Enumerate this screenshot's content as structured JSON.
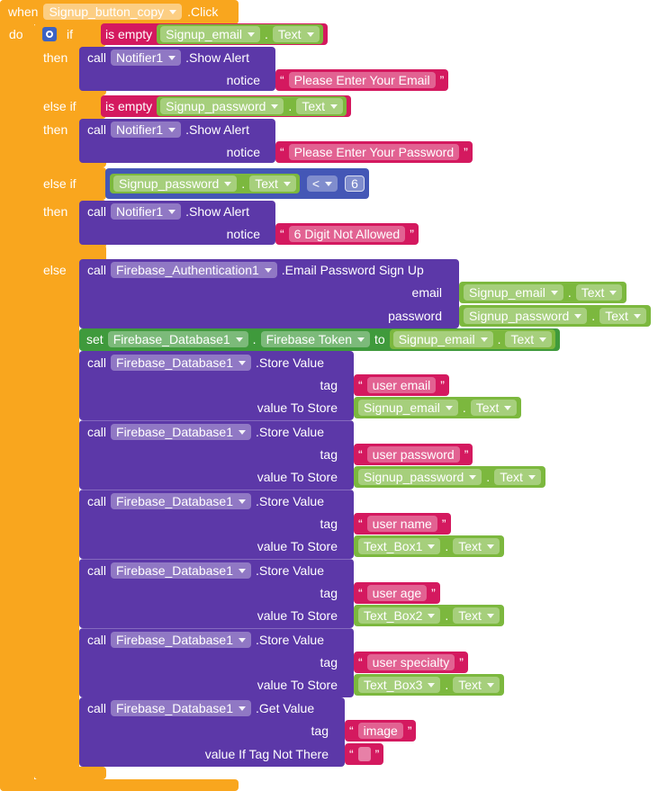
{
  "event": {
    "keyword": "when",
    "component": "Signup_button_copy",
    "event": ".Click",
    "do": "do"
  },
  "if_block": {
    "labels": [
      "if",
      "then",
      "else if",
      "then",
      "else if",
      "then",
      "else"
    ],
    "conditions": [
      {
        "operator": "is empty",
        "component": "Signup_email",
        "property": "Text"
      },
      {
        "operator": "is empty",
        "component": "Signup_password",
        "property": "Text"
      },
      {
        "component": "Signup_password",
        "property": "Text",
        "operator": "<",
        "number": 6
      }
    ],
    "alerts": [
      {
        "call": "call",
        "component": "Notifier1",
        "method": ".Show Alert",
        "param": "notice",
        "text": "Please Enter Your Email"
      },
      {
        "call": "call",
        "component": "Notifier1",
        "method": ".Show Alert",
        "param": "notice",
        "text": "Please Enter Your Password"
      },
      {
        "call": "call",
        "component": "Notifier1",
        "method": ".Show Alert",
        "param": "notice",
        "text": "6 Digit Not Allowed"
      }
    ]
  },
  "else_branch": {
    "sign_up": {
      "call": "call",
      "component": "Firebase_Authentication1",
      "method": ".Email Password Sign Up",
      "params": [
        {
          "name": "email",
          "component": "Signup_email",
          "property": "Text"
        },
        {
          "name": "password",
          "component": "Signup_password",
          "property": "Text"
        }
      ]
    },
    "set": {
      "keyword": "set",
      "component": "Firebase_Database1",
      "property": "Firebase Token",
      "to": "to",
      "value": {
        "component": "Signup_email",
        "property": "Text"
      }
    },
    "store_values": [
      {
        "call": "call",
        "component": "Firebase_Database1",
        "method": ".Store Value",
        "tag_label": "tag",
        "tag": "user email",
        "value_label": "value To Store",
        "value": {
          "component": "Signup_email",
          "property": "Text"
        }
      },
      {
        "call": "call",
        "component": "Firebase_Database1",
        "method": ".Store Value",
        "tag_label": "tag",
        "tag": "user password",
        "value_label": "value To Store",
        "value": {
          "component": "Signup_password",
          "property": "Text"
        }
      },
      {
        "call": "call",
        "component": "Firebase_Database1",
        "method": ".Store Value",
        "tag_label": "tag",
        "tag": "user name",
        "value_label": "value To Store",
        "value": {
          "component": "Text_Box1",
          "property": "Text"
        }
      },
      {
        "call": "call",
        "component": "Firebase_Database1",
        "method": ".Store Value",
        "tag_label": "tag",
        "tag": "user age",
        "value_label": "value To Store",
        "value": {
          "component": "Text_Box2",
          "property": "Text"
        }
      },
      {
        "call": "call",
        "component": "Firebase_Database1",
        "method": ".Store Value",
        "tag_label": "tag",
        "tag": "user specialty",
        "value_label": "value To Store",
        "value": {
          "component": "Text_Box3",
          "property": "Text"
        }
      }
    ],
    "get_value": {
      "call": "call",
      "component": "Firebase_Database1",
      "method": ".Get Value",
      "tag_label": "tag",
      "tag": "image",
      "default_label": "value If Tag Not There"
    }
  },
  "symbols": {
    "dot": ".",
    "open_quote": "“",
    "close_quote": "”"
  }
}
